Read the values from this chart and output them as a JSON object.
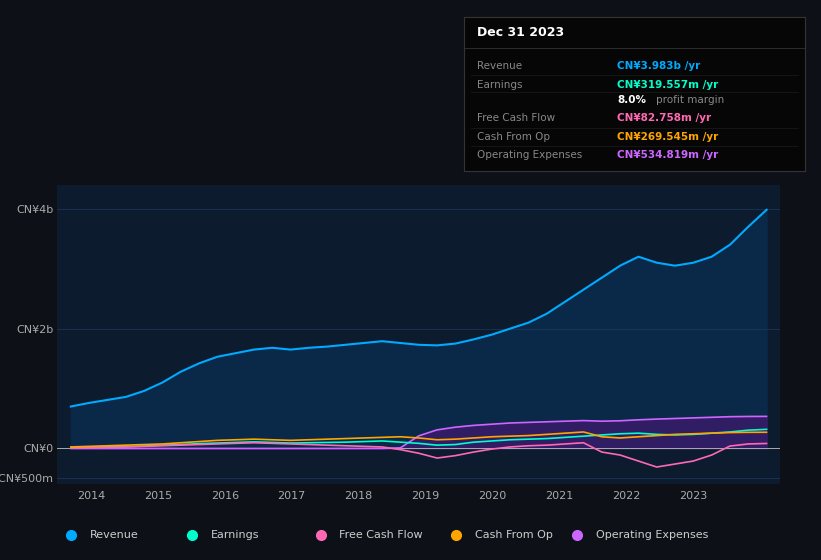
{
  "bg_color": "#0d1117",
  "plot_bg_color": "#0d1b2e",
  "grid_color": "#1e3a5f",
  "title_text": "Dec 31 2023",
  "info_box_rows": [
    {
      "label": "Revenue",
      "value": "CN¥3.983b /yr",
      "value_color": "#00aaff"
    },
    {
      "label": "Earnings",
      "value": "CN¥319.557m /yr",
      "value_color": "#00ffcc"
    },
    {
      "label": "",
      "value": "8.0% profit margin",
      "value_color": "#ffffff"
    },
    {
      "label": "Free Cash Flow",
      "value": "CN¥82.758m /yr",
      "value_color": "#ff69b4"
    },
    {
      "label": "Cash From Op",
      "value": "CN¥269.545m /yr",
      "value_color": "#ffa500"
    },
    {
      "label": "Operating Expenses",
      "value": "CN¥534.819m /yr",
      "value_color": "#cc66ff"
    }
  ],
  "ylim": [
    -600,
    4400
  ],
  "xlim": [
    2013.5,
    2024.3
  ],
  "ytick_vals": [
    -500,
    0,
    2000,
    4000
  ],
  "ytick_labels": [
    "-CN¥500m",
    "CN¥0",
    "CN¥2b",
    "CN¥4b"
  ],
  "xticks": [
    2014,
    2015,
    2016,
    2017,
    2018,
    2019,
    2020,
    2021,
    2022,
    2023
  ],
  "legend_items": [
    {
      "label": "Revenue",
      "color": "#00aaff"
    },
    {
      "label": "Earnings",
      "color": "#00ffcc"
    },
    {
      "label": "Free Cash Flow",
      "color": "#ff69b4"
    },
    {
      "label": "Cash From Op",
      "color": "#ffa500"
    },
    {
      "label": "Operating Expenses",
      "color": "#cc66ff"
    }
  ],
  "revenue": [
    700,
    760,
    810,
    860,
    960,
    1100,
    1280,
    1420,
    1530,
    1590,
    1650,
    1680,
    1650,
    1680,
    1700,
    1730,
    1760,
    1790,
    1760,
    1730,
    1720,
    1750,
    1820,
    1900,
    2000,
    2100,
    2250,
    2450,
    2650,
    2850,
    3050,
    3200,
    3100,
    3050,
    3100,
    3200,
    3400,
    3700,
    3983
  ],
  "earnings": [
    15,
    20,
    25,
    30,
    40,
    55,
    65,
    80,
    90,
    100,
    110,
    100,
    90,
    95,
    100,
    105,
    115,
    125,
    105,
    85,
    55,
    65,
    105,
    125,
    145,
    155,
    165,
    185,
    205,
    225,
    245,
    255,
    235,
    225,
    235,
    255,
    275,
    305,
    319
  ],
  "free_cash_flow": [
    10,
    15,
    20,
    25,
    35,
    45,
    55,
    65,
    75,
    85,
    95,
    85,
    75,
    65,
    55,
    45,
    35,
    25,
    -20,
    -80,
    -160,
    -120,
    -60,
    -10,
    25,
    45,
    55,
    75,
    95,
    -60,
    -110,
    -210,
    -310,
    -260,
    -210,
    -110,
    40,
    75,
    83
  ],
  "cash_from_op": [
    25,
    35,
    45,
    55,
    65,
    75,
    95,
    115,
    135,
    145,
    155,
    145,
    135,
    145,
    155,
    165,
    175,
    185,
    195,
    175,
    145,
    155,
    175,
    195,
    205,
    215,
    235,
    255,
    275,
    195,
    175,
    195,
    215,
    235,
    245,
    255,
    265,
    269,
    270
  ],
  "operating_expenses": [
    0,
    0,
    0,
    0,
    0,
    0,
    0,
    0,
    0,
    0,
    0,
    0,
    0,
    0,
    0,
    0,
    0,
    0,
    10,
    210,
    310,
    355,
    385,
    405,
    425,
    435,
    445,
    455,
    465,
    455,
    462,
    478,
    490,
    500,
    510,
    520,
    530,
    534,
    535
  ],
  "n_points": 39,
  "year_start": 2013.7,
  "year_end": 2024.1
}
